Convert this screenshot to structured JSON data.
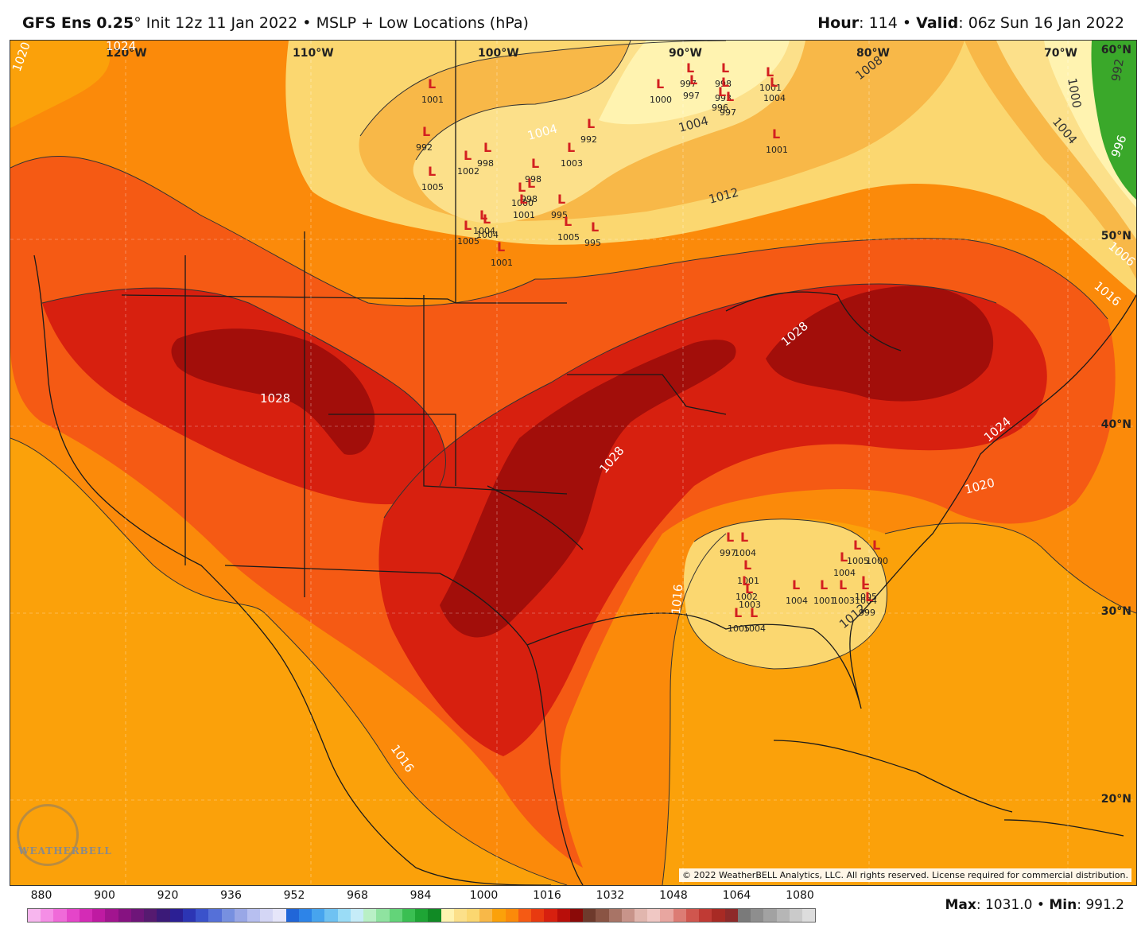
{
  "header": {
    "model": "GFS Ens 0.25",
    "degree": "°",
    "init": "Init 12z 11 Jan 2022",
    "sep1": "•",
    "field": "MSLP + Low Locations (hPa)",
    "hour_label": "Hour",
    "hour_value": ": 114",
    "sep2": "•",
    "valid_label": "Valid",
    "valid_value": ": 06z Sun 16 Jan 2022"
  },
  "map": {
    "longitude_labels": [
      "120°W",
      "110°W",
      "100°W",
      "90°W",
      "80°W",
      "70°W"
    ],
    "latitude_labels": [
      "60°N",
      "50°N",
      "40°N",
      "30°N",
      "20°N"
    ],
    "isobar_labels": [
      "1020",
      "1024",
      "1028",
      "1028",
      "1028",
      "1028",
      "1024",
      "1020",
      "1016",
      "1016",
      "1012",
      "1012",
      "1008",
      "1004",
      "1004",
      "1004",
      "1000",
      "992",
      "1016",
      "1006",
      "1016",
      "996"
    ],
    "low_values": [
      "1001",
      "992",
      "1002",
      "998",
      "1005",
      "1004",
      "998",
      "1003",
      "992",
      "998",
      "1000",
      "1001",
      "995",
      "1004",
      "1005",
      "1005",
      "995",
      "1001",
      "1000",
      "997",
      "997",
      "998",
      "993",
      "996",
      "997",
      "1001",
      "1004",
      "1001",
      "997",
      "1004",
      "1001",
      "1002",
      "1003",
      "1005",
      "1004",
      "1004",
      "1001",
      "1003",
      "1004",
      "1005",
      "1000",
      "1005",
      "1004",
      "999"
    ],
    "colors": {
      "c1012": "#fbd770",
      "c1016": "#fba10a",
      "c1020": "#fb8a0a",
      "c1024": "#f55a14",
      "c1028": "#d7200f",
      "c1032": "#a20e0a",
      "c1008": "#f8b848",
      "c1004": "#fce08a",
      "c1000": "#fff3b0",
      "green": "#3aa82a",
      "coast": "#1a1a1a"
    }
  },
  "copyright": "© 2022 WeatherBELL Analytics, LLC. All rights reserved. License required for commercial distribution.",
  "watermark": "WEATHERBELL",
  "legend": {
    "ticks": [
      "880",
      "900",
      "920",
      "936",
      "952",
      "968",
      "984",
      "1000",
      "1016",
      "1032",
      "1048",
      "1064",
      "1080"
    ],
    "colors": [
      "#f7b6ee",
      "#f58ee6",
      "#f06ad9",
      "#e545c9",
      "#d42bb6",
      "#bf1aa2",
      "#a2148f",
      "#861281",
      "#6e1579",
      "#561a70",
      "#3b1a78",
      "#2b1f94",
      "#2c35b4",
      "#3a52cb",
      "#5570d8",
      "#7790e0",
      "#99a7e6",
      "#b7bff0",
      "#d4d6f5",
      "#e6e6fa",
      "#2166d8",
      "#2d84e8",
      "#47a4ee",
      "#6fc2f2",
      "#9adcf6",
      "#c6ecf8",
      "#b9f0c6",
      "#8fe3a0",
      "#63d479",
      "#3abf52",
      "#1ea535",
      "#118a25",
      "#fff3b0",
      "#fce08a",
      "#fbd770",
      "#f8b848",
      "#fba10a",
      "#fb8a0a",
      "#f55a14",
      "#e83a10",
      "#d7200f",
      "#b80e0a",
      "#8b0a08",
      "#6e3a2c",
      "#8a5444",
      "#a87466",
      "#c8948a",
      "#e1b6ae",
      "#f0c8c4",
      "#e8a6a0",
      "#dc7c74",
      "#d0564e",
      "#c03a34",
      "#a82a24",
      "#8e2a2a",
      "#7a7a7a",
      "#8e8e8e",
      "#a2a2a2",
      "#b6b6b6",
      "#cacaca",
      "#dddddd"
    ]
  },
  "stats": {
    "max_label": "Max",
    "max_value": ": 1031.0",
    "sep": "•",
    "min_label": "Min",
    "min_value": ": 991.2"
  }
}
